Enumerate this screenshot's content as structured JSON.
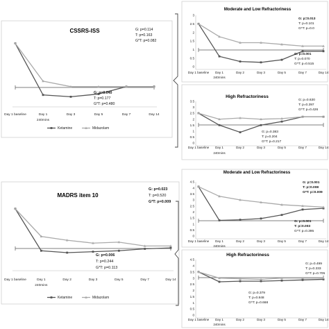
{
  "chart_data": [
    {
      "id": "cssrs_all",
      "type": "line",
      "title": "CSSRS-ISS",
      "categories": [
        "Day 1 baseline",
        "Day 1 240mins",
        "Day 3",
        "Day 5",
        "Day 7",
        "Day 14"
      ],
      "series": [
        {
          "name": "Ketamine",
          "color": "#555555",
          "marker": "square",
          "values": [
            3.3,
            0.5,
            0.4,
            0.55,
            0.95,
            0.95
          ]
        },
        {
          "name": "Midazolam",
          "color": "#aaaaaa",
          "marker": "triangle",
          "values": [
            3.3,
            1.25,
            0.95,
            0.95,
            0.95,
            0.95
          ]
        }
      ],
      "ylim": [
        0,
        4
      ],
      "show_yticks": false,
      "grid": false,
      "legend": {
        "position": "bottom-center"
      },
      "stats_top": [
        "G: p=0.114",
        "T: p=0.163",
        "G*T: p=0.082"
      ],
      "stats_bottom": [
        "G: p=0.040",
        "T: p=0.177",
        "G*T: p=0.480"
      ],
      "bold_top": [],
      "bold_bottom": [
        0
      ]
    },
    {
      "id": "cssrs_mod",
      "type": "line",
      "title": "Moderate and Low Refractoriness",
      "categories": [
        "Day 1 baseline",
        "Day 1 240mins",
        "Day 2",
        "Day 3",
        "Day 5",
        "Day 7",
        "Day 14"
      ],
      "series": [
        {
          "name": "Ketamine",
          "color": "#555555",
          "marker": "square",
          "values": [
            2.5,
            0.6,
            0.3,
            0.25,
            0.4,
            0.9,
            0.9
          ]
        },
        {
          "name": "Midazolam",
          "color": "#aaaaaa",
          "marker": "triangle",
          "values": [
            2.5,
            1.75,
            1.4,
            1.4,
            1.3,
            1.2,
            1.2
          ]
        }
      ],
      "ylim": [
        0,
        3
      ],
      "yticks": [
        "0",
        "0.5",
        "1",
        "1.5",
        "2",
        "2.5",
        "3"
      ],
      "grid": false,
      "stats_top": [
        "G: p=0.013",
        "T: p=0.101",
        "G*T: p=0.0"
      ],
      "stats_bottom": [
        "G: p=0.001",
        "T: p=0.070",
        "G*T: p=0.515"
      ],
      "bold_top": [
        0
      ],
      "bold_bottom": [
        0
      ]
    },
    {
      "id": "cssrs_high",
      "type": "line",
      "title": "High Refractoriness",
      "categories": [
        "Day 1 baseline",
        "Day 1 240mins",
        "Day 2",
        "Day 3",
        "Day 5",
        "Day 7",
        "Day 14"
      ],
      "series": [
        {
          "name": "Ketamine",
          "color": "#555555",
          "marker": "square",
          "values": [
            2.5,
            1.5,
            0.9,
            1.5,
            1.8,
            2.2,
            2.2
          ]
        },
        {
          "name": "Midazolam",
          "color": "#aaaaaa",
          "marker": "triangle",
          "values": [
            2.5,
            2.0,
            2.1,
            2.0,
            2.05,
            2.2,
            2.2
          ]
        }
      ],
      "ylim": [
        0,
        3.5
      ],
      "yticks": [
        "0",
        "0.5",
        "1",
        "1.5",
        "2",
        "2.5",
        "3",
        "3.5"
      ],
      "grid": false,
      "stats_top": [
        "G: p=0.630",
        "T: p=0.397",
        "G*T: p=0.426"
      ],
      "stats_bottom": [
        "G: p=0.383",
        "T: p=0.204",
        "G*T: p=0.217"
      ],
      "bold_top": [],
      "bold_bottom": []
    },
    {
      "id": "madrs_all",
      "type": "line",
      "title": "MADRS item 10",
      "categories": [
        "Day 1 baseline",
        "Day 1 240mins",
        "Day 2",
        "Day 3",
        "Day 5",
        "Day 7",
        "Day 14"
      ],
      "series": [
        {
          "name": "Ketamine",
          "color": "#555555",
          "marker": "square",
          "values": [
            3.1,
            0.9,
            0.8,
            0.85,
            0.9,
            1.0,
            1.05
          ]
        },
        {
          "name": "Midazolam",
          "color": "#aaaaaa",
          "marker": "triangle",
          "values": [
            3.1,
            1.65,
            1.45,
            1.3,
            1.35,
            1.15,
            1.15
          ]
        }
      ],
      "ylim": [
        0,
        4
      ],
      "show_yticks": false,
      "grid": false,
      "legend": {
        "position": "bottom-center"
      },
      "stats_top": [
        "G: p=0.023",
        "T: p=0.520",
        "G*T: p=0.009"
      ],
      "stats_bottom": [
        "G: p=0.006",
        "T: p=0.244",
        "G*T: p=0.113"
      ],
      "bold_top": [
        0,
        2
      ],
      "bold_bottom": [
        0
      ]
    },
    {
      "id": "madrs_mod",
      "type": "line",
      "title": "Moderate and Low Refractoriness",
      "categories": [
        "Day 1 baseline",
        "Day 1 240mins",
        "Day 2",
        "Day 3",
        "Day 5",
        "Day 7",
        "Day 14"
      ],
      "series": [
        {
          "name": "Ketamine",
          "color": "#555555",
          "marker": "square",
          "values": [
            4.1,
            1.3,
            1.35,
            1.45,
            1.75,
            2.2,
            2.3
          ]
        },
        {
          "name": "Midazolam",
          "color": "#aaaaaa",
          "marker": "triangle",
          "values": [
            4.1,
            3.3,
            3.0,
            2.8,
            2.6,
            2.5,
            2.4
          ]
        }
      ],
      "ylim": [
        0,
        4.5
      ],
      "yticks": [
        "0",
        "0.5",
        "1",
        "1.5",
        "2",
        "2.5",
        "3",
        "3.5",
        "4",
        "4.5"
      ],
      "grid": false,
      "stats_top": [
        "G: p=0.001",
        "T: p=0.008",
        "G*T: p=0.009"
      ],
      "stats_bottom": [
        "G: p=0.001",
        "T: p=0.003",
        "G*T: p=0.395"
      ],
      "bold_top": [
        0,
        1,
        2
      ],
      "bold_bottom": [
        0,
        1
      ]
    },
    {
      "id": "madrs_high",
      "type": "line",
      "title": "High Refractoriness",
      "categories": [
        "Day 1 baseline",
        "Day 1 240mins",
        "Day 2",
        "Day 3",
        "Day 5",
        "Day 7",
        "Day 14"
      ],
      "series": [
        {
          "name": "Ketamine",
          "color": "#555555",
          "marker": "square",
          "values": [
            3.5,
            2.7,
            2.75,
            2.75,
            2.8,
            2.85,
            2.9
          ]
        },
        {
          "name": "Midazolam",
          "color": "#aaaaaa",
          "marker": "triangle",
          "values": [
            3.5,
            3.0,
            2.95,
            2.9,
            3.0,
            3.0,
            3.0
          ]
        }
      ],
      "ylim": [
        0,
        4.5
      ],
      "yticks": [
        "0",
        "0.5",
        "1",
        "1.5",
        "2",
        "2.5",
        "3",
        "3.5",
        "4",
        "4.5"
      ],
      "grid": false,
      "stats_top": [
        "G: p=0.499",
        "T: p=0.333",
        "G*T: p=0.705"
      ],
      "stats_bottom": [
        "G: p=0.379",
        "T: p=0.848",
        "G*T: p=0.668"
      ],
      "bold_top": [],
      "bold_bottom": []
    }
  ]
}
